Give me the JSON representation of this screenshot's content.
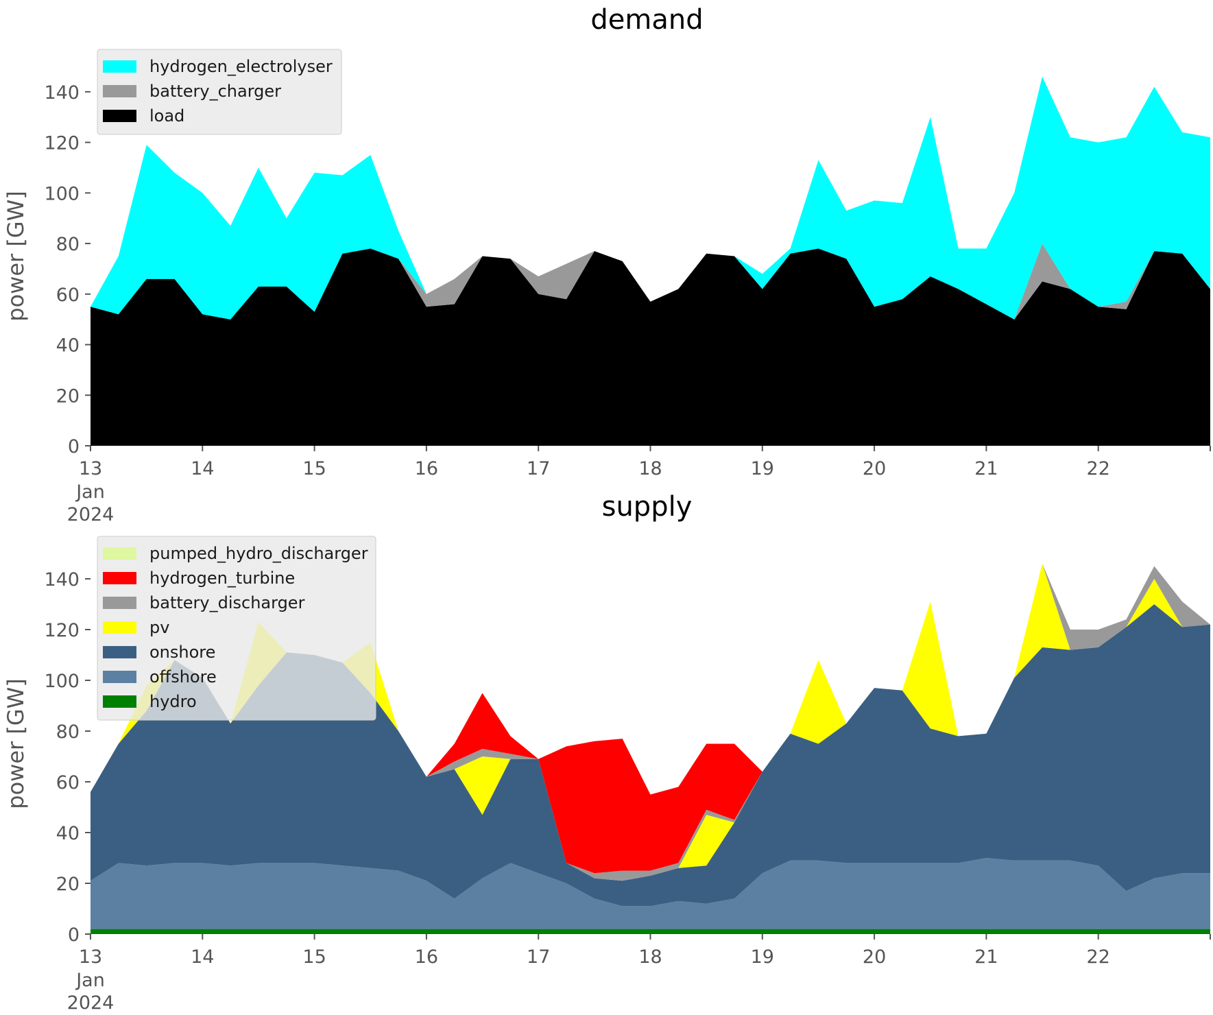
{
  "colors": {
    "hydrogen_electrolyser": "#00ffff",
    "battery_charger": "#999999",
    "load": "#000000",
    "pumped_hydro_discharger": "#dff7a0",
    "hydrogen_turbine": "#ff0000",
    "battery_discharger": "#999999",
    "pv": "#ffff00",
    "onshore": "#3b5f82",
    "offshore": "#5b80a2",
    "hydro": "#008000"
  },
  "chart_data": [
    {
      "type": "area",
      "stacked": true,
      "title": "demand",
      "xlabel": "",
      "ylabel": "power [GW]",
      "ylim": [
        0,
        150
      ],
      "xlim": [
        13,
        23
      ],
      "yticks": [
        0,
        20,
        40,
        60,
        80,
        100,
        120,
        140
      ],
      "xticks": [
        13,
        14,
        15,
        16,
        17,
        18,
        19,
        20,
        21,
        22
      ],
      "xtick_labels": [
        "13",
        "14",
        "15",
        "16",
        "17",
        "18",
        "19",
        "20",
        "21",
        "22"
      ],
      "x_extra_label": [
        "Jan",
        "2024"
      ],
      "grid": false,
      "legend": "top-left",
      "x_unit": "day of January 2024",
      "legend_order": [
        "hydrogen_electrolyser",
        "battery_charger",
        "load"
      ],
      "stack_order": [
        "load",
        "battery_charger",
        "hydrogen_electrolyser"
      ],
      "x": [
        13.0,
        13.25,
        13.5,
        13.75,
        14.0,
        14.25,
        14.5,
        14.75,
        15.0,
        15.25,
        15.5,
        15.75,
        16.0,
        16.25,
        16.5,
        16.75,
        17.0,
        17.25,
        17.5,
        17.75,
        18.0,
        18.25,
        18.5,
        18.75,
        19.0,
        19.25,
        19.5,
        19.75,
        20.0,
        20.25,
        20.5,
        20.75,
        21.0,
        21.25,
        21.5,
        21.75,
        22.0,
        22.25,
        22.5,
        22.75,
        23.0
      ],
      "totals": [
        55,
        75,
        119,
        108,
        100,
        87,
        110,
        90,
        108,
        107,
        115,
        85,
        60,
        66,
        75,
        74,
        67,
        72,
        77,
        73,
        57,
        62,
        76,
        75,
        68,
        78,
        113,
        93,
        97,
        96,
        130,
        78,
        78,
        100,
        146,
        122,
        120,
        122,
        142,
        124,
        122
      ],
      "series": [
        {
          "name": "load",
          "values": [
            55,
            52,
            66,
            66,
            52,
            50,
            63,
            63,
            53,
            76,
            78,
            74,
            55,
            56,
            75,
            74,
            60,
            58,
            77,
            73,
            57,
            62,
            76,
            75,
            62,
            76,
            78,
            74,
            55,
            58,
            67,
            62,
            56,
            50,
            65,
            62,
            55,
            54,
            77,
            76,
            62
          ]
        },
        {
          "name": "battery_charger",
          "values": [
            0,
            0,
            0,
            0,
            0,
            0,
            0,
            0,
            0,
            0,
            0,
            0,
            5,
            10,
            0,
            0,
            7,
            14,
            0,
            0,
            0,
            0,
            0,
            0,
            0,
            0,
            0,
            0,
            0,
            0,
            0,
            0,
            0,
            0,
            15,
            0,
            0,
            3,
            0,
            0,
            0
          ]
        },
        {
          "name": "hydrogen_electrolyser",
          "values": [
            0,
            23,
            53,
            42,
            48,
            37,
            47,
            27,
            55,
            31,
            37,
            11,
            0,
            0,
            0,
            0,
            0,
            0,
            0,
            0,
            0,
            0,
            0,
            0,
            6,
            2,
            35,
            19,
            42,
            38,
            63,
            16,
            22,
            50,
            66,
            60,
            65,
            65,
            65,
            48,
            60
          ]
        }
      ]
    },
    {
      "type": "area",
      "stacked": true,
      "title": "supply",
      "xlabel": "",
      "ylabel": "power [GW]",
      "ylim": [
        0,
        150
      ],
      "xlim": [
        13,
        23
      ],
      "yticks": [
        0,
        20,
        40,
        60,
        80,
        100,
        120,
        140
      ],
      "xticks": [
        13,
        14,
        15,
        16,
        17,
        18,
        19,
        20,
        21,
        22
      ],
      "xtick_labels": [
        "13",
        "14",
        "15",
        "16",
        "17",
        "18",
        "19",
        "20",
        "21",
        "22"
      ],
      "x_extra_label": [
        "Jan",
        "2024"
      ],
      "grid": false,
      "legend": "top-left",
      "x_unit": "day of January 2024",
      "legend_order": [
        "pumped_hydro_discharger",
        "hydrogen_turbine",
        "battery_discharger",
        "pv",
        "onshore",
        "offshore",
        "hydro"
      ],
      "stack_order": [
        "hydro",
        "offshore",
        "onshore",
        "pv",
        "battery_discharger",
        "hydrogen_turbine",
        "pumped_hydro_discharger"
      ],
      "x": [
        13.0,
        13.25,
        13.5,
        13.75,
        14.0,
        14.25,
        14.5,
        14.75,
        15.0,
        15.25,
        15.5,
        15.75,
        16.0,
        16.25,
        16.5,
        16.75,
        17.0,
        17.25,
        17.5,
        17.75,
        18.0,
        18.25,
        18.5,
        18.75,
        19.0,
        19.25,
        19.5,
        19.75,
        20.0,
        20.25,
        20.5,
        20.75,
        21.0,
        21.25,
        21.5,
        21.75,
        22.0,
        22.25,
        22.5,
        22.75,
        23.0
      ],
      "series": [
        {
          "name": "hydro",
          "values": [
            2,
            2,
            2,
            2,
            2,
            2,
            2,
            2,
            2,
            2,
            2,
            2,
            2,
            2,
            2,
            2,
            2,
            2,
            2,
            2,
            2,
            2,
            2,
            2,
            2,
            2,
            2,
            2,
            2,
            2,
            2,
            2,
            2,
            2,
            2,
            2,
            2,
            2,
            2,
            2,
            2
          ]
        },
        {
          "name": "offshore",
          "values": [
            19,
            26,
            25,
            26,
            26,
            25,
            26,
            26,
            26,
            25,
            24,
            23,
            19,
            12,
            20,
            26,
            22,
            18,
            12,
            9,
            9,
            11,
            10,
            12,
            22,
            27,
            27,
            26,
            26,
            26,
            26,
            26,
            28,
            27,
            27,
            27,
            25,
            15,
            20,
            22,
            22
          ]
        },
        {
          "name": "onshore",
          "values": [
            35,
            47,
            61,
            80,
            73,
            56,
            70,
            83,
            82,
            80,
            69,
            55,
            41,
            51,
            25,
            41,
            45,
            8,
            8,
            10,
            12,
            13,
            15,
            30,
            40,
            50,
            46,
            55,
            69,
            68,
            53,
            50,
            49,
            72,
            84,
            83,
            86,
            104,
            108,
            97,
            98
          ]
        },
        {
          "name": "pv",
          "values": [
            0,
            0,
            10,
            0,
            0,
            0,
            25,
            0,
            0,
            0,
            20,
            0,
            0,
            0,
            23,
            0,
            0,
            0,
            0,
            0,
            0,
            0,
            20,
            0,
            0,
            0,
            33,
            0,
            0,
            0,
            50,
            0,
            0,
            0,
            33,
            0,
            0,
            0,
            10,
            0,
            0
          ]
        },
        {
          "name": "battery_discharger",
          "values": [
            0,
            0,
            0,
            0,
            0,
            0,
            0,
            0,
            0,
            0,
            0,
            0,
            0,
            3,
            3,
            2,
            0,
            0,
            2,
            4,
            2,
            2,
            2,
            1,
            0,
            0,
            0,
            0,
            0,
            0,
            0,
            0,
            0,
            0,
            0,
            8,
            7,
            3,
            5,
            10,
            0
          ]
        },
        {
          "name": "hydrogen_turbine",
          "values": [
            0,
            0,
            0,
            0,
            0,
            0,
            0,
            0,
            0,
            0,
            0,
            0,
            0,
            7,
            22,
            7,
            0,
            46,
            52,
            52,
            30,
            30,
            26,
            30,
            0,
            0,
            0,
            0,
            0,
            0,
            0,
            0,
            0,
            0,
            0,
            0,
            0,
            0,
            0,
            0,
            0
          ]
        },
        {
          "name": "pumped_hydro_discharger",
          "values": [
            0,
            0,
            0,
            0,
            0,
            0,
            0,
            0,
            0,
            0,
            0,
            0,
            0,
            0,
            0,
            0,
            0,
            0,
            0,
            0,
            0,
            0,
            0,
            0,
            0,
            0,
            0,
            0,
            0,
            0,
            0,
            0,
            0,
            0,
            0,
            0,
            0,
            0,
            0,
            0,
            0
          ]
        }
      ]
    }
  ]
}
